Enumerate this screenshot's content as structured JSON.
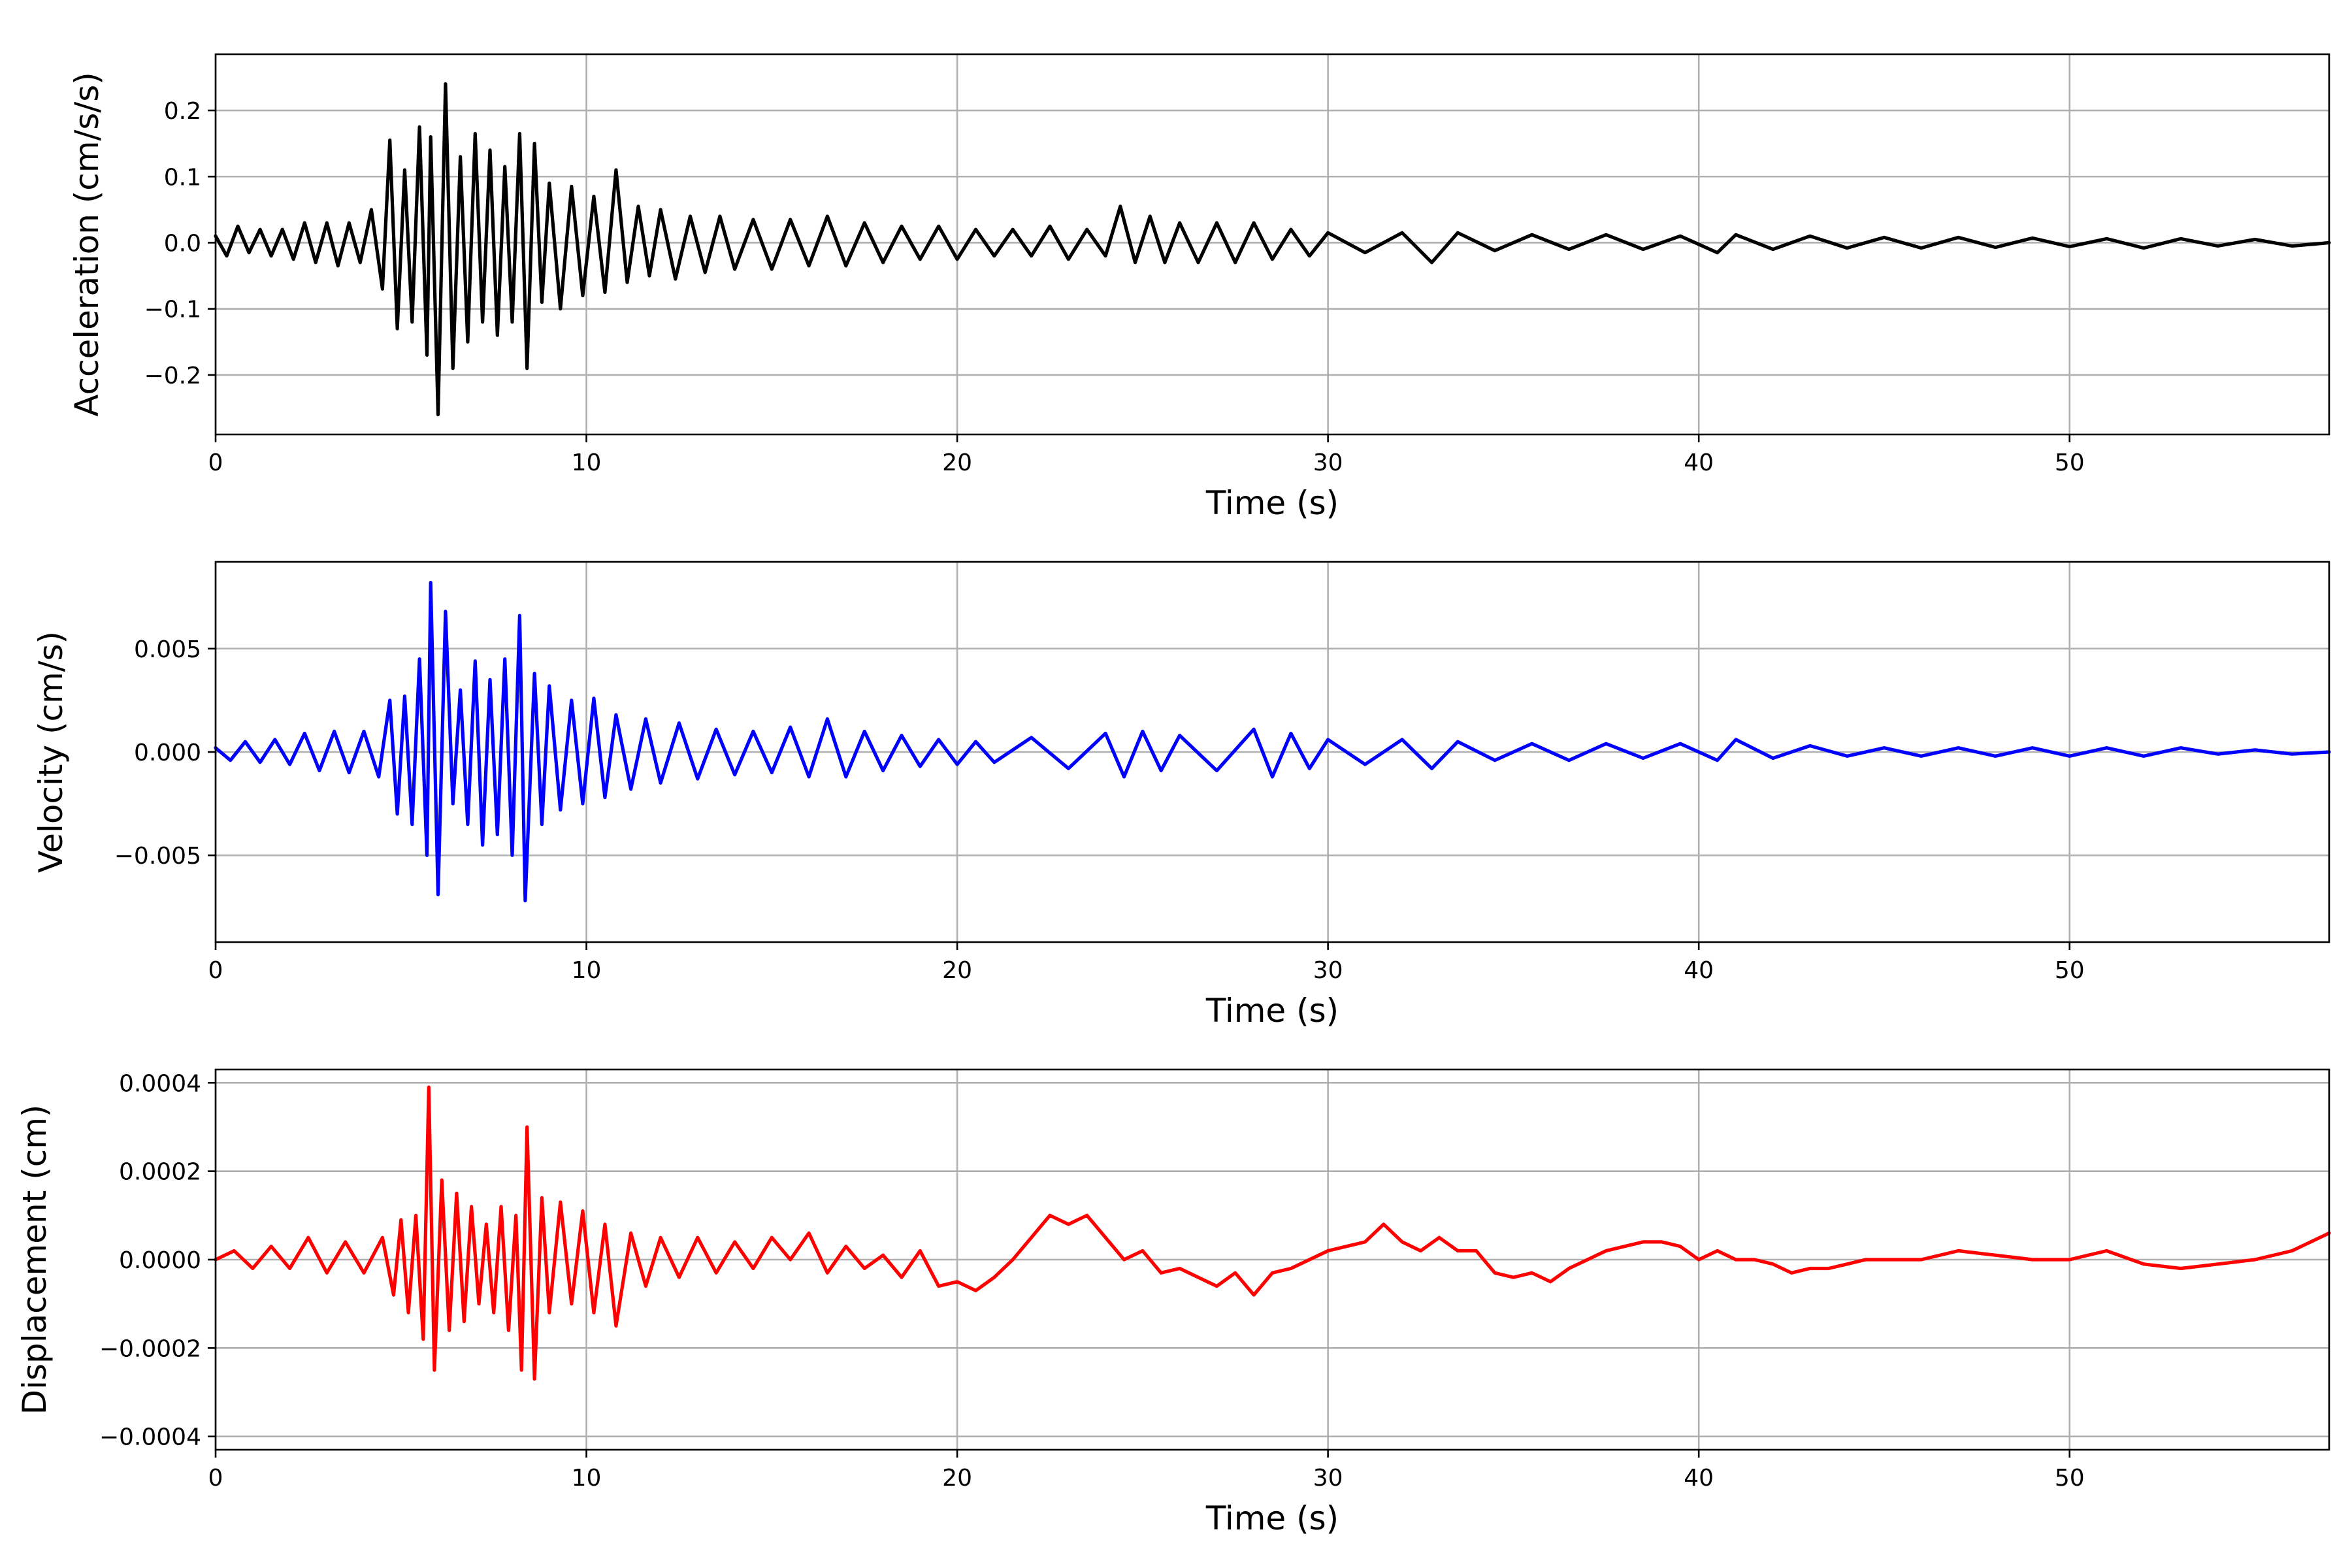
{
  "chart_data": [
    {
      "type": "line",
      "xlabel": "Time (s)",
      "ylabel": "Acceleration (cm/s/s)",
      "xlim": [
        0,
        57
      ],
      "ylim": [
        -0.29,
        0.285
      ],
      "xticks": [
        0,
        10,
        20,
        30,
        40,
        50
      ],
      "xtick_labels": [
        "0",
        "10",
        "20",
        "30",
        "40",
        "50"
      ],
      "yticks": [
        -0.2,
        -0.1,
        0.0,
        0.1,
        0.2
      ],
      "ytick_labels": [
        "−0.2",
        "−0.1",
        "0.0",
        "0.1",
        "0.2"
      ],
      "grid": true,
      "series": [
        {
          "color": "#000000",
          "x": [
            0.0,
            0.3,
            0.6,
            0.9,
            1.2,
            1.5,
            1.8,
            2.1,
            2.4,
            2.7,
            3.0,
            3.3,
            3.6,
            3.9,
            4.2,
            4.5,
            4.7,
            4.9,
            5.1,
            5.3,
            5.5,
            5.7,
            5.8,
            6.0,
            6.2,
            6.4,
            6.6,
            6.8,
            7.0,
            7.2,
            7.4,
            7.6,
            7.8,
            8.0,
            8.2,
            8.4,
            8.6,
            8.8,
            9.0,
            9.3,
            9.6,
            9.9,
            10.2,
            10.5,
            10.8,
            11.1,
            11.4,
            11.7,
            12.0,
            12.4,
            12.8,
            13.2,
            13.6,
            14.0,
            14.5,
            15.0,
            15.5,
            16.0,
            16.5,
            17.0,
            17.5,
            18.0,
            18.5,
            19.0,
            19.5,
            20.0,
            20.5,
            21.0,
            21.5,
            22.0,
            22.5,
            23.0,
            23.5,
            24.0,
            24.4,
            24.8,
            25.2,
            25.6,
            26.0,
            26.5,
            27.0,
            27.5,
            28.0,
            28.5,
            29.0,
            29.5,
            30.0,
            31.0,
            32.0,
            32.8,
            33.5,
            34.5,
            35.5,
            36.5,
            37.5,
            38.5,
            39.5,
            40.5,
            41.0,
            42.0,
            43.0,
            44.0,
            45.0,
            46.0,
            47.0,
            48.0,
            49.0,
            50.0,
            51.0,
            52.0,
            53.0,
            54.0,
            55.0,
            56.0,
            57.0
          ],
          "y": [
            0.01,
            -0.02,
            0.025,
            -0.015,
            0.02,
            -0.02,
            0.02,
            -0.025,
            0.03,
            -0.03,
            0.03,
            -0.035,
            0.03,
            -0.03,
            0.05,
            -0.07,
            0.155,
            -0.13,
            0.11,
            -0.12,
            0.175,
            -0.17,
            0.16,
            -0.26,
            0.24,
            -0.19,
            0.13,
            -0.15,
            0.165,
            -0.12,
            0.14,
            -0.14,
            0.115,
            -0.12,
            0.165,
            -0.19,
            0.15,
            -0.09,
            0.09,
            -0.1,
            0.085,
            -0.08,
            0.07,
            -0.075,
            0.11,
            -0.06,
            0.055,
            -0.05,
            0.05,
            -0.055,
            0.04,
            -0.045,
            0.04,
            -0.04,
            0.035,
            -0.04,
            0.035,
            -0.035,
            0.04,
            -0.035,
            0.03,
            -0.03,
            0.025,
            -0.025,
            0.025,
            -0.025,
            0.02,
            -0.02,
            0.02,
            -0.02,
            0.025,
            -0.025,
            0.02,
            -0.02,
            0.055,
            -0.03,
            0.04,
            -0.03,
            0.03,
            -0.03,
            0.03,
            -0.03,
            0.03,
            -0.025,
            0.02,
            -0.02,
            0.015,
            -0.015,
            0.015,
            -0.03,
            0.015,
            -0.012,
            0.012,
            -0.01,
            0.012,
            -0.01,
            0.01,
            -0.015,
            0.012,
            -0.01,
            0.01,
            -0.008,
            0.008,
            -0.008,
            0.008,
            -0.007,
            0.007,
            -0.006,
            0.006,
            -0.008,
            0.006,
            -0.005,
            0.005,
            -0.005,
            0.0
          ]
        }
      ]
    },
    {
      "type": "line",
      "xlabel": "Time (s)",
      "ylabel": "Velocity (cm/s)",
      "xlim": [
        0,
        57
      ],
      "ylim": [
        -0.0092,
        0.0092
      ],
      "xticks": [
        0,
        10,
        20,
        30,
        40,
        50
      ],
      "xtick_labels": [
        "0",
        "10",
        "20",
        "30",
        "40",
        "50"
      ],
      "yticks": [
        -0.005,
        0.0,
        0.005
      ],
      "ytick_labels": [
        "−0.005",
        "0.000",
        "0.005"
      ],
      "grid": true,
      "series": [
        {
          "color": "#0000ff",
          "x": [
            0.0,
            0.4,
            0.8,
            1.2,
            1.6,
            2.0,
            2.4,
            2.8,
            3.2,
            3.6,
            4.0,
            4.4,
            4.7,
            4.9,
            5.1,
            5.3,
            5.5,
            5.7,
            5.8,
            6.0,
            6.2,
            6.4,
            6.6,
            6.8,
            7.0,
            7.2,
            7.4,
            7.6,
            7.8,
            8.0,
            8.2,
            8.35,
            8.6,
            8.8,
            9.0,
            9.3,
            9.6,
            9.9,
            10.2,
            10.5,
            10.8,
            11.2,
            11.6,
            12.0,
            12.5,
            13.0,
            13.5,
            14.0,
            14.5,
            15.0,
            15.5,
            16.0,
            16.5,
            17.0,
            17.5,
            18.0,
            18.5,
            19.0,
            19.5,
            20.0,
            20.5,
            21.0,
            22.0,
            23.0,
            24.0,
            24.5,
            25.0,
            25.5,
            26.0,
            27.0,
            28.0,
            28.5,
            29.0,
            29.5,
            30.0,
            31.0,
            32.0,
            32.8,
            33.5,
            34.5,
            35.5,
            36.5,
            37.5,
            38.5,
            39.5,
            40.5,
            41.0,
            42.0,
            43.0,
            44.0,
            45.0,
            46.0,
            47.0,
            48.0,
            49.0,
            50.0,
            51.0,
            52.0,
            53.0,
            54.0,
            55.0,
            56.0,
            57.0
          ],
          "y": [
            0.0002,
            -0.0004,
            0.0005,
            -0.0005,
            0.0006,
            -0.0006,
            0.0009,
            -0.0009,
            0.001,
            -0.001,
            0.001,
            -0.0012,
            0.0025,
            -0.003,
            0.0027,
            -0.0035,
            0.0045,
            -0.005,
            0.0082,
            -0.0069,
            0.0068,
            -0.0025,
            0.003,
            -0.0035,
            0.0044,
            -0.0045,
            0.0035,
            -0.004,
            0.0045,
            -0.005,
            0.0066,
            -0.0072,
            0.0038,
            -0.0035,
            0.0032,
            -0.0028,
            0.0025,
            -0.0025,
            0.0026,
            -0.0022,
            0.0018,
            -0.0018,
            0.0016,
            -0.0015,
            0.0014,
            -0.0013,
            0.0011,
            -0.0011,
            0.001,
            -0.001,
            0.0012,
            -0.0012,
            0.0016,
            -0.0012,
            0.001,
            -0.0009,
            0.0008,
            -0.0007,
            0.0006,
            -0.0006,
            0.0005,
            -0.0005,
            0.0007,
            -0.0008,
            0.0009,
            -0.0012,
            0.001,
            -0.0009,
            0.0008,
            -0.0009,
            0.0011,
            -0.0012,
            0.0009,
            -0.0008,
            0.0006,
            -0.0006,
            0.0006,
            -0.0008,
            0.0005,
            -0.0004,
            0.0004,
            -0.0004,
            0.0004,
            -0.0003,
            0.0004,
            -0.0004,
            0.0006,
            -0.0003,
            0.0003,
            -0.0002,
            0.0002,
            -0.0002,
            0.0002,
            -0.0002,
            0.0002,
            -0.0002,
            0.0002,
            -0.0002,
            0.0002,
            -0.0001,
            0.0001,
            -0.0001,
            0.0
          ]
        }
      ]
    },
    {
      "type": "line",
      "xlabel": "Time (s)",
      "ylabel": "Displacement (cm)",
      "xlim": [
        0,
        57
      ],
      "ylim": [
        -0.00043,
        0.00043
      ],
      "xticks": [
        0,
        10,
        20,
        30,
        40,
        50
      ],
      "xtick_labels": [
        "0",
        "10",
        "20",
        "30",
        "40",
        "50"
      ],
      "yticks": [
        -0.0004,
        -0.0002,
        0.0,
        0.0002,
        0.0004
      ],
      "ytick_labels": [
        "−0.0004",
        "−0.0002",
        "0.0000",
        "0.0002",
        "0.0004"
      ],
      "grid": true,
      "series": [
        {
          "color": "#ff0000",
          "x": [
            0.0,
            0.5,
            1.0,
            1.5,
            2.0,
            2.5,
            3.0,
            3.5,
            4.0,
            4.5,
            4.8,
            5.0,
            5.2,
            5.4,
            5.6,
            5.75,
            5.9,
            6.1,
            6.3,
            6.5,
            6.7,
            6.9,
            7.1,
            7.3,
            7.5,
            7.7,
            7.9,
            8.1,
            8.25,
            8.4,
            8.6,
            8.8,
            9.0,
            9.3,
            9.6,
            9.9,
            10.2,
            10.5,
            10.8,
            11.2,
            11.6,
            12.0,
            12.5,
            13.0,
            13.5,
            14.0,
            14.5,
            15.0,
            15.5,
            16.0,
            16.5,
            17.0,
            17.5,
            18.0,
            18.5,
            19.0,
            19.5,
            20.0,
            20.5,
            21.0,
            21.5,
            22.0,
            22.5,
            23.0,
            23.5,
            24.0,
            24.5,
            25.0,
            25.5,
            26.0,
            26.5,
            27.0,
            27.5,
            28.0,
            28.5,
            29.0,
            29.5,
            30.0,
            30.5,
            31.0,
            31.5,
            32.0,
            32.5,
            33.0,
            33.5,
            34.0,
            34.5,
            35.0,
            35.5,
            36.0,
            36.5,
            37.0,
            37.5,
            38.0,
            38.5,
            39.0,
            39.5,
            40.0,
            40.5,
            41.0,
            41.5,
            42.0,
            42.5,
            43.0,
            43.5,
            44.0,
            44.5,
            45.0,
            46.0,
            47.0,
            48.0,
            49.0,
            50.0,
            51.0,
            52.0,
            53.0,
            54.0,
            55.0,
            56.0,
            57.0
          ],
          "y": [
            0.0,
            2e-05,
            -2e-05,
            3e-05,
            -2e-05,
            5e-05,
            -3e-05,
            4e-05,
            -3e-05,
            5e-05,
            -8e-05,
            9e-05,
            -0.00012,
            0.0001,
            -0.00018,
            0.00039,
            -0.00025,
            0.00018,
            -0.00016,
            0.00015,
            -0.00014,
            0.00012,
            -0.0001,
            8e-05,
            -0.00012,
            0.00012,
            -0.00016,
            0.0001,
            -0.00025,
            0.0003,
            -0.00027,
            0.00014,
            -0.00012,
            0.00013,
            -0.0001,
            0.00011,
            -0.00012,
            8e-05,
            -0.00015,
            6e-05,
            -6e-05,
            5e-05,
            -4e-05,
            5e-05,
            -3e-05,
            4e-05,
            -2e-05,
            5e-05,
            0.0,
            6e-05,
            -3e-05,
            3e-05,
            -2e-05,
            1e-05,
            -4e-05,
            2e-05,
            -6e-05,
            -5e-05,
            -7e-05,
            -4e-05,
            0.0,
            5e-05,
            0.0001,
            8e-05,
            0.0001,
            5e-05,
            0.0,
            2e-05,
            -3e-05,
            -2e-05,
            -4e-05,
            -6e-05,
            -3e-05,
            -8e-05,
            -3e-05,
            -2e-05,
            0.0,
            2e-05,
            3e-05,
            4e-05,
            8e-05,
            4e-05,
            2e-05,
            5e-05,
            2e-05,
            2e-05,
            -3e-05,
            -4e-05,
            -3e-05,
            -5e-05,
            -2e-05,
            0.0,
            2e-05,
            3e-05,
            4e-05,
            4e-05,
            3e-05,
            0.0,
            2e-05,
            0.0,
            0.0,
            -1e-05,
            -3e-05,
            -2e-05,
            -2e-05,
            -1e-05,
            0.0,
            0.0,
            0.0,
            2e-05,
            1e-05,
            0.0,
            0.0,
            2e-05,
            -1e-05,
            -2e-05,
            -1e-05,
            0.0,
            2e-05,
            6e-05
          ]
        }
      ]
    }
  ]
}
